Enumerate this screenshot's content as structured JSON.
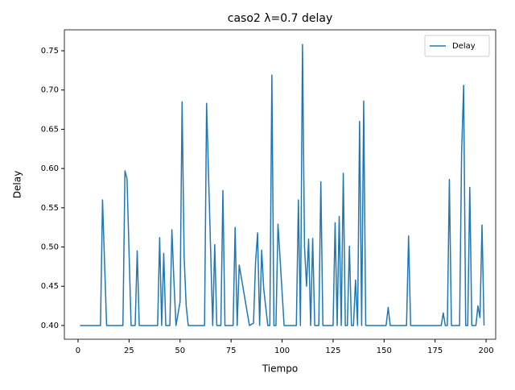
{
  "chart_data": {
    "type": "line",
    "title": "caso2 λ=0.7 delay",
    "x_label": "Tiempo",
    "y_label": "Delay",
    "xlim": [
      -6.7,
      204.7
    ],
    "ylim": [
      0.3825,
      0.7767
    ],
    "xticks": [
      0,
      25,
      50,
      75,
      100,
      125,
      150,
      175,
      200
    ],
    "yticks": [
      {
        "value": 0.4,
        "label": "0.40"
      },
      {
        "value": 0.45,
        "label": "0.45"
      },
      {
        "value": 0.5,
        "label": "0.50"
      },
      {
        "value": 0.55,
        "label": "0.55"
      },
      {
        "value": 0.6,
        "label": "0.60"
      },
      {
        "value": 0.65,
        "label": "0.65"
      },
      {
        "value": 0.7,
        "label": "0.70"
      },
      {
        "value": 0.75,
        "label": "0.75"
      }
    ],
    "legend": "upper right",
    "series": [
      {
        "name": "Delay",
        "color": "#1f77b4",
        "x": [
          1,
          11,
          12,
          14,
          22,
          23,
          24,
          26,
          28,
          29,
          30,
          39,
          40,
          41,
          42,
          43,
          45,
          46,
          47,
          48,
          50,
          51,
          52,
          53,
          54,
          62,
          63,
          66,
          67,
          68,
          70,
          71,
          72,
          76,
          77,
          78,
          79,
          84,
          86,
          87,
          88,
          89,
          90,
          91,
          93,
          94,
          95,
          96,
          97,
          98,
          101,
          107,
          108,
          109,
          110,
          111,
          112,
          113,
          114,
          115,
          116,
          118,
          119,
          120,
          125,
          126,
          127,
          128,
          129,
          130,
          131,
          132,
          133,
          134,
          135,
          136,
          137,
          138,
          139,
          140,
          141,
          151,
          152,
          153,
          161,
          162,
          163,
          178,
          179,
          180,
          181,
          182,
          183,
          187,
          188,
          189,
          190,
          191,
          192,
          193,
          195,
          196,
          197,
          198,
          199
        ],
        "values": [
          0.4,
          0.4,
          0.56,
          0.4,
          0.4,
          0.597,
          0.587,
          0.4,
          0.4,
          0.495,
          0.4,
          0.4,
          0.512,
          0.4,
          0.492,
          0.4,
          0.4,
          0.522,
          0.456,
          0.4,
          0.43,
          0.685,
          0.487,
          0.425,
          0.4,
          0.4,
          0.683,
          0.4,
          0.503,
          0.4,
          0.4,
          0.572,
          0.4,
          0.4,
          0.525,
          0.4,
          0.477,
          0.4,
          0.403,
          0.48,
          0.518,
          0.4,
          0.496,
          0.447,
          0.4,
          0.4,
          0.719,
          0.4,
          0.4,
          0.529,
          0.4,
          0.4,
          0.56,
          0.4,
          0.758,
          0.5,
          0.45,
          0.51,
          0.4,
          0.511,
          0.4,
          0.4,
          0.583,
          0.4,
          0.4,
          0.531,
          0.4,
          0.539,
          0.4,
          0.594,
          0.4,
          0.4,
          0.501,
          0.4,
          0.4,
          0.458,
          0.4,
          0.66,
          0.4,
          0.686,
          0.4,
          0.4,
          0.423,
          0.4,
          0.4,
          0.514,
          0.4,
          0.4,
          0.416,
          0.4,
          0.4,
          0.586,
          0.4,
          0.4,
          0.62,
          0.706,
          0.4,
          0.4,
          0.576,
          0.4,
          0.4,
          0.425,
          0.41,
          0.528,
          0.4
        ]
      }
    ]
  }
}
